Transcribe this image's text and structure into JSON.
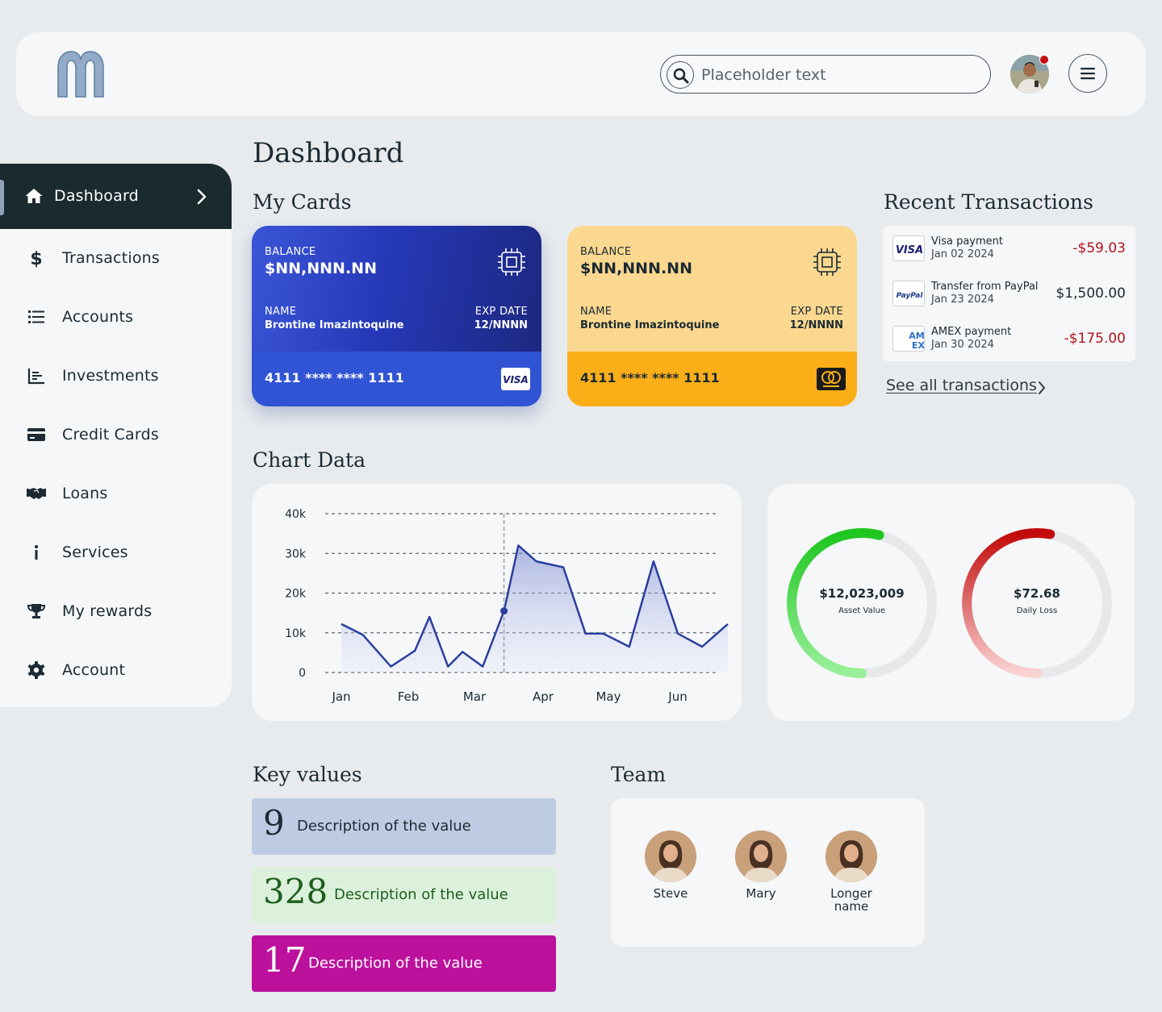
{
  "header": {
    "search_placeholder": "Placeholder text"
  },
  "sidebar": {
    "items": [
      {
        "label": "Dashboard",
        "icon": "home-icon",
        "active": true
      },
      {
        "label": "Transactions",
        "icon": "dollar-icon"
      },
      {
        "label": "Accounts",
        "icon": "list-icon"
      },
      {
        "label": "Investments",
        "icon": "bar-chart-icon"
      },
      {
        "label": "Credit Cards",
        "icon": "credit-card-icon"
      },
      {
        "label": "Loans",
        "icon": "handshake-icon"
      },
      {
        "label": "Services",
        "icon": "info-icon"
      },
      {
        "label": "My rewards",
        "icon": "trophy-icon"
      },
      {
        "label": "Account",
        "icon": "gear-icon"
      }
    ]
  },
  "page": {
    "title": "Dashboard",
    "my_cards_title": "My Cards",
    "recent_transactions_title": "Recent Transactions",
    "chart_title": "Chart Data",
    "key_values_title": "Key values",
    "team_title": "Team"
  },
  "cards": [
    {
      "balance_label": "BALANCE",
      "balance": "$NN,NNN.NN",
      "name_label": "NAME",
      "name": "Brontine Imazintoquine",
      "exp_label": "EXP DATE",
      "exp": "12/NNNN",
      "number": "4111 **** **** 1111",
      "brand": "VISA",
      "color": "#2539b8"
    },
    {
      "balance_label": "BALANCE",
      "balance": "$NN,NNN.NN",
      "name_label": "NAME",
      "name": "Brontine Imazintoquine",
      "exp_label": "EXP DATE",
      "exp": "12/NNNN",
      "number": "4111 **** **** 1111",
      "brand": "mastercard",
      "color": "#fbae17"
    }
  ],
  "transactions": [
    {
      "title": "Visa payment",
      "date": "Jan 02 2024",
      "amount": "-$59.03",
      "logo": "VISA",
      "negative": true
    },
    {
      "title": "Transfer from PayPal",
      "date": "Jan 23 2024",
      "amount": "$1,500.00",
      "logo": "PayPal",
      "negative": false
    },
    {
      "title": "AMEX payment",
      "date": "Jan 30 2024",
      "amount": "-$175.00",
      "logo": "AMEX",
      "negative": true
    }
  ],
  "see_all": "See all transactions",
  "chart_data": {
    "type": "area",
    "title": "",
    "xlabel": "",
    "ylabel": "",
    "categories": [
      "Jan",
      "Feb",
      "Mar",
      "Apr",
      "May",
      "Jun"
    ],
    "yticks": [
      "0",
      "10k",
      "20k",
      "30k",
      "40k"
    ],
    "ylim": [
      0,
      40000
    ],
    "grid": true,
    "x": [
      0,
      0.32,
      0.74,
      1.1,
      1.32,
      1.6,
      1.82,
      2.12,
      2.43,
      2.64,
      2.9,
      3.31,
      3.65,
      3.92,
      4.3,
      4.65,
      5.0,
      5.35,
      5.72
    ],
    "values": [
      12200,
      9500,
      1500,
      5500,
      14000,
      1500,
      5200,
      1500,
      15500,
      32000,
      28000,
      26500,
      9800,
      9800,
      6500,
      28000,
      9800,
      6500,
      12200
    ],
    "highlight_index": 8,
    "series_color": "#2b3f9e"
  },
  "gauges": [
    {
      "value": "$12,023,009",
      "label": "Asset Value",
      "fraction": 0.54,
      "color": "#22c92a"
    },
    {
      "value": "$72.68",
      "label": "Daily Loss",
      "fraction": 0.53,
      "color": "#c00d0d"
    }
  ],
  "key_values": [
    {
      "number": "9",
      "description": "Description of the value"
    },
    {
      "number": "328",
      "description": "Description of the value"
    },
    {
      "number": "17",
      "description": "Description of the value"
    }
  ],
  "team": [
    {
      "name": "Steve"
    },
    {
      "name": "Mary"
    },
    {
      "name": "Longer name"
    }
  ]
}
